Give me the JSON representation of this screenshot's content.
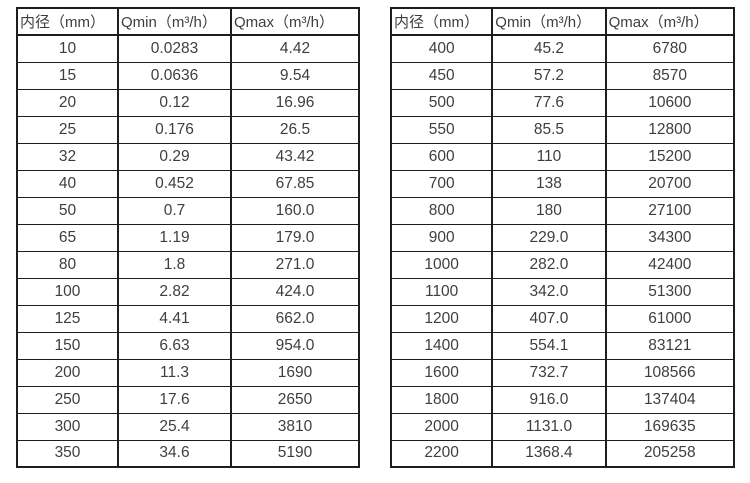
{
  "page": {
    "background_color": "#ffffff",
    "border_color": "#1d1d1d",
    "text_color": "#3e3e40"
  },
  "tables": [
    {
      "name": "flow-range-table-small-diameters",
      "headers": [
        "内径（mm）",
        "Qmin（m³/h）",
        "Qmax（m³/h）"
      ],
      "rows": [
        [
          "10",
          "0.0283",
          "4.42"
        ],
        [
          "15",
          "0.0636",
          "9.54"
        ],
        [
          "20",
          "0.12",
          "16.96"
        ],
        [
          "25",
          "0.176",
          "26.5"
        ],
        [
          "32",
          "0.29",
          "43.42"
        ],
        [
          "40",
          "0.452",
          "67.85"
        ],
        [
          "50",
          "0.7",
          "160.0"
        ],
        [
          "65",
          "1.19",
          "179.0"
        ],
        [
          "80",
          "1.8",
          "271.0"
        ],
        [
          "100",
          "2.82",
          "424.0"
        ],
        [
          "125",
          "4.41",
          "662.0"
        ],
        [
          "150",
          "6.63",
          "954.0"
        ],
        [
          "200",
          "11.3",
          "1690"
        ],
        [
          "250",
          "17.6",
          "2650"
        ],
        [
          "300",
          "25.4",
          "3810"
        ],
        [
          "350",
          "34.6",
          "5190"
        ]
      ]
    },
    {
      "name": "flow-range-table-large-diameters",
      "headers": [
        "内径（mm）",
        "Qmin（m³/h）",
        "Qmax（m³/h）"
      ],
      "rows": [
        [
          "400",
          "45.2",
          "6780"
        ],
        [
          "450",
          "57.2",
          "8570"
        ],
        [
          "500",
          "77.6",
          "10600"
        ],
        [
          "550",
          "85.5",
          "12800"
        ],
        [
          "600",
          "110",
          "15200"
        ],
        [
          "700",
          "138",
          "20700"
        ],
        [
          "800",
          "180",
          "27100"
        ],
        [
          "900",
          "229.0",
          "34300"
        ],
        [
          "1000",
          "282.0",
          "42400"
        ],
        [
          "1100",
          "342.0",
          "51300"
        ],
        [
          "1200",
          "407.0",
          "61000"
        ],
        [
          "1400",
          "554.1",
          "83121"
        ],
        [
          "1600",
          "732.7",
          "108566"
        ],
        [
          "1800",
          "916.0",
          "137404"
        ],
        [
          "2000",
          "1131.0",
          "169635"
        ],
        [
          "2200",
          "1368.4",
          "205258"
        ]
      ]
    }
  ]
}
